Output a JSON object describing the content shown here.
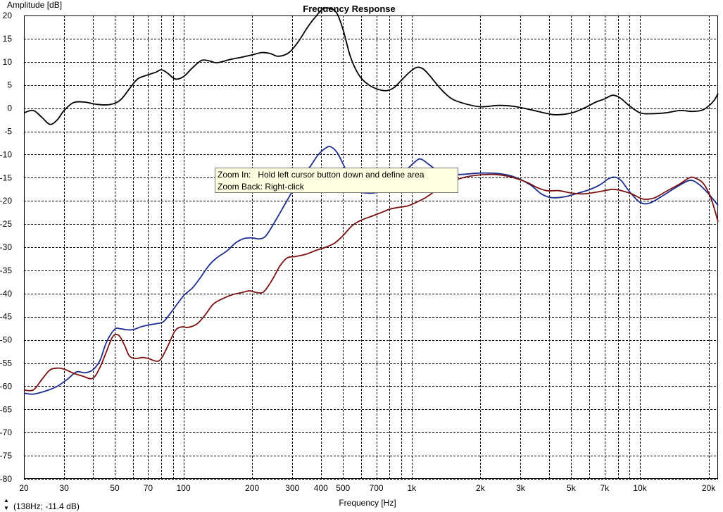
{
  "chart_data": {
    "type": "line",
    "title": "Frequency Response",
    "xlabel": "Frequency [Hz]",
    "ylabel": "Amplitude [dB]",
    "x_scale": "log",
    "xlim": [
      20,
      22000
    ],
    "ylim": [
      -80,
      20
    ],
    "grid": true,
    "x_tick_labels": [
      {
        "v": 20,
        "t": "20"
      },
      {
        "v": 30,
        "t": "30"
      },
      {
        "v": 50,
        "t": "50"
      },
      {
        "v": 70,
        "t": "70"
      },
      {
        "v": 100,
        "t": "100"
      },
      {
        "v": 200,
        "t": "200"
      },
      {
        "v": 300,
        "t": "300"
      },
      {
        "v": 400,
        "t": "400"
      },
      {
        "v": 500,
        "t": "500"
      },
      {
        "v": 700,
        "t": "700"
      },
      {
        "v": 1000,
        "t": "1k"
      },
      {
        "v": 2000,
        "t": "2k"
      },
      {
        "v": 3000,
        "t": "3k"
      },
      {
        "v": 5000,
        "t": "5k"
      },
      {
        "v": 7000,
        "t": "7k"
      },
      {
        "v": 10000,
        "t": "10k"
      },
      {
        "v": 20000,
        "t": "20k"
      }
    ],
    "y_ticks": [
      20,
      15,
      10,
      5,
      0,
      -5,
      -10,
      -15,
      -20,
      -25,
      -30,
      -35,
      -40,
      -45,
      -50,
      -55,
      -60,
      -65,
      -70,
      -75,
      -80
    ],
    "series": [
      {
        "color": "#000000",
        "points": [
          [
            20,
            -1
          ],
          [
            22,
            -0.5
          ],
          [
            24,
            -2
          ],
          [
            26,
            -3.5
          ],
          [
            28,
            -2.5
          ],
          [
            30,
            -0.5
          ],
          [
            33,
            1.2
          ],
          [
            37,
            1.3
          ],
          [
            42,
            0.8
          ],
          [
            48,
            0.8
          ],
          [
            53,
            1.8
          ],
          [
            58,
            4.2
          ],
          [
            63,
            6.3
          ],
          [
            70,
            7.2
          ],
          [
            76,
            7.8
          ],
          [
            80,
            8.3
          ],
          [
            85,
            7.6
          ],
          [
            92,
            6.3
          ],
          [
            100,
            6.8
          ],
          [
            110,
            8.8
          ],
          [
            120,
            10.3
          ],
          [
            130,
            10.2
          ],
          [
            140,
            9.8
          ],
          [
            160,
            10.5
          ],
          [
            180,
            11
          ],
          [
            200,
            11.5
          ],
          [
            220,
            12
          ],
          [
            240,
            11.8
          ],
          [
            260,
            11.2
          ],
          [
            290,
            12
          ],
          [
            320,
            14.5
          ],
          [
            350,
            17.5
          ],
          [
            380,
            19.8
          ],
          [
            410,
            21.5
          ],
          [
            440,
            21.5
          ],
          [
            470,
            20.5
          ],
          [
            500,
            17
          ],
          [
            540,
            11
          ],
          [
            590,
            7
          ],
          [
            650,
            5
          ],
          [
            720,
            4
          ],
          [
            780,
            3.8
          ],
          [
            840,
            4.5
          ],
          [
            900,
            6
          ],
          [
            980,
            7.8
          ],
          [
            1050,
            8.8
          ],
          [
            1120,
            8.5
          ],
          [
            1200,
            7
          ],
          [
            1350,
            4
          ],
          [
            1500,
            2
          ],
          [
            1700,
            1
          ],
          [
            2000,
            0.3
          ],
          [
            2400,
            0.6
          ],
          [
            2800,
            0.4
          ],
          [
            3300,
            -0.3
          ],
          [
            3800,
            -1
          ],
          [
            4200,
            -1.4
          ],
          [
            4700,
            -1.3
          ],
          [
            5200,
            -0.8
          ],
          [
            5800,
            0.2
          ],
          [
            6400,
            1.3
          ],
          [
            7000,
            2
          ],
          [
            7600,
            2.8
          ],
          [
            8200,
            2.2
          ],
          [
            9000,
            0.5
          ],
          [
            10000,
            -1
          ],
          [
            11000,
            -1.2
          ],
          [
            13000,
            -1
          ],
          [
            15000,
            -0.5
          ],
          [
            17000,
            -0.7
          ],
          [
            19000,
            -0.3
          ],
          [
            21000,
            1.5
          ],
          [
            22000,
            3.2
          ]
        ]
      },
      {
        "color": "#1f2f8f",
        "points": [
          [
            20,
            -61.5
          ],
          [
            22,
            -61.7
          ],
          [
            25,
            -61
          ],
          [
            28,
            -60
          ],
          [
            31,
            -58.5
          ],
          [
            34,
            -56.9
          ],
          [
            37,
            -57.1
          ],
          [
            40,
            -56.5
          ],
          [
            43,
            -54.5
          ],
          [
            46,
            -50.5
          ],
          [
            50,
            -47.7
          ],
          [
            53,
            -47.6
          ],
          [
            56,
            -47.8
          ],
          [
            60,
            -47.8
          ],
          [
            65,
            -47.2
          ],
          [
            70,
            -46.8
          ],
          [
            76,
            -46.5
          ],
          [
            82,
            -46
          ],
          [
            90,
            -43.5
          ],
          [
            100,
            -40.5
          ],
          [
            110,
            -38.7
          ],
          [
            120,
            -36.2
          ],
          [
            130,
            -33.8
          ],
          [
            140,
            -32.3
          ],
          [
            155,
            -30.8
          ],
          [
            170,
            -29
          ],
          [
            185,
            -28.1
          ],
          [
            200,
            -28
          ],
          [
            215,
            -28.2
          ],
          [
            230,
            -27.5
          ],
          [
            255,
            -24
          ],
          [
            280,
            -20.5
          ],
          [
            300,
            -18
          ],
          [
            330,
            -15
          ],
          [
            360,
            -12.5
          ],
          [
            390,
            -10
          ],
          [
            420,
            -8.6
          ],
          [
            440,
            -8.3
          ],
          [
            470,
            -9.5
          ],
          [
            500,
            -12
          ],
          [
            540,
            -15.5
          ],
          [
            580,
            -17.8
          ],
          [
            630,
            -18.3
          ],
          [
            700,
            -18.2
          ],
          [
            780,
            -17.3
          ],
          [
            860,
            -15.5
          ],
          [
            950,
            -13.3
          ],
          [
            1050,
            -11.3
          ],
          [
            1100,
            -11
          ],
          [
            1180,
            -12
          ],
          [
            1300,
            -13.5
          ],
          [
            1450,
            -14.3
          ],
          [
            1650,
            -14.3
          ],
          [
            2000,
            -14
          ],
          [
            2400,
            -14.1
          ],
          [
            2800,
            -14.8
          ],
          [
            3300,
            -16.5
          ],
          [
            3700,
            -18.5
          ],
          [
            4100,
            -19.3
          ],
          [
            4700,
            -19.1
          ],
          [
            5300,
            -18.4
          ],
          [
            6000,
            -17.6
          ],
          [
            6700,
            -16.5
          ],
          [
            7300,
            -15.2
          ],
          [
            7800,
            -14.9
          ],
          [
            8300,
            -15.7
          ],
          [
            9000,
            -18
          ],
          [
            10000,
            -20.3
          ],
          [
            11000,
            -20.5
          ],
          [
            12500,
            -19
          ],
          [
            14500,
            -17
          ],
          [
            16500,
            -15.6
          ],
          [
            18000,
            -16.3
          ],
          [
            20000,
            -18.5
          ],
          [
            22000,
            -21
          ]
        ]
      },
      {
        "color": "#7a1212",
        "points": [
          [
            20,
            -60.8
          ],
          [
            22,
            -60.8
          ],
          [
            24,
            -58.5
          ],
          [
            26,
            -56.5
          ],
          [
            28,
            -56.1
          ],
          [
            30,
            -56.3
          ],
          [
            33,
            -57.2
          ],
          [
            36,
            -57.8
          ],
          [
            40,
            -58.3
          ],
          [
            43,
            -56
          ],
          [
            46,
            -52.5
          ],
          [
            49,
            -49.3
          ],
          [
            52,
            -49
          ],
          [
            55,
            -51
          ],
          [
            58,
            -53.5
          ],
          [
            62,
            -54
          ],
          [
            66,
            -53.8
          ],
          [
            70,
            -54
          ],
          [
            76,
            -54.6
          ],
          [
            80,
            -54
          ],
          [
            86,
            -51
          ],
          [
            92,
            -48
          ],
          [
            98,
            -47.2
          ],
          [
            105,
            -47.3
          ],
          [
            115,
            -46.5
          ],
          [
            125,
            -44.5
          ],
          [
            135,
            -42.3
          ],
          [
            150,
            -41
          ],
          [
            165,
            -40.2
          ],
          [
            180,
            -39.8
          ],
          [
            195,
            -39.4
          ],
          [
            210,
            -39.8
          ],
          [
            225,
            -39.6
          ],
          [
            245,
            -37
          ],
          [
            265,
            -34
          ],
          [
            285,
            -32.3
          ],
          [
            310,
            -32
          ],
          [
            345,
            -31.5
          ],
          [
            380,
            -30.7
          ],
          [
            420,
            -30
          ],
          [
            460,
            -29.1
          ],
          [
            500,
            -27.5
          ],
          [
            550,
            -25.3
          ],
          [
            600,
            -24.2
          ],
          [
            660,
            -23.4
          ],
          [
            730,
            -22.6
          ],
          [
            800,
            -21.8
          ],
          [
            880,
            -21.4
          ],
          [
            960,
            -21.1
          ],
          [
            1050,
            -20.3
          ],
          [
            1150,
            -19.3
          ],
          [
            1260,
            -18
          ],
          [
            1400,
            -16.8
          ],
          [
            1600,
            -15.3
          ],
          [
            1900,
            -14.5
          ],
          [
            2300,
            -14.3
          ],
          [
            2700,
            -14.8
          ],
          [
            3200,
            -16
          ],
          [
            3500,
            -17
          ],
          [
            3900,
            -17.8
          ],
          [
            4400,
            -17.8
          ],
          [
            5000,
            -18.3
          ],
          [
            5600,
            -18.5
          ],
          [
            6300,
            -18.2
          ],
          [
            7000,
            -17.8
          ],
          [
            7600,
            -17.5
          ],
          [
            8300,
            -17.8
          ],
          [
            9300,
            -18.6
          ],
          [
            10300,
            -19.6
          ],
          [
            11500,
            -19.4
          ],
          [
            13000,
            -18
          ],
          [
            15000,
            -16.3
          ],
          [
            16500,
            -15
          ],
          [
            17500,
            -15.1
          ],
          [
            19000,
            -16.3
          ],
          [
            20500,
            -19.5
          ],
          [
            22000,
            -24.5
          ]
        ]
      }
    ]
  },
  "tooltip": {
    "line1": "Zoom In:   Hold left cursor button down and define area",
    "line2": "Zoom Back: Right-click"
  },
  "cursor_readout": "(138Hz; -11.4 dB)",
  "scroll_arrows": {
    "up": "▲",
    "down": "▼"
  }
}
